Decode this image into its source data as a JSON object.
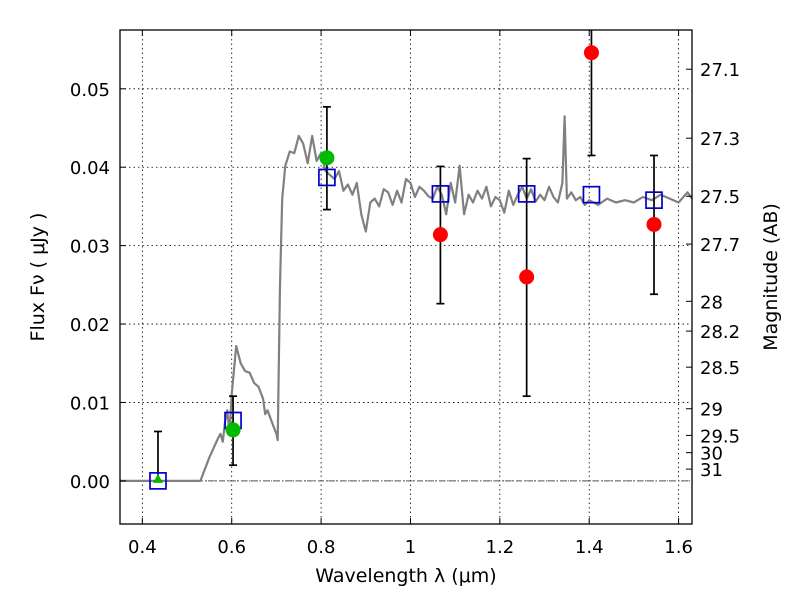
{
  "chart_data": {
    "type": "scatter",
    "xlabel": "Wavelength  λ (μm)",
    "ylabel": "Flux  Fν  ( μJy )",
    "ylabel_right": "Magnitude (AB)",
    "xlim": [
      0.35,
      1.63
    ],
    "ylim": [
      -0.0055,
      0.0575
    ],
    "x_ticks": [
      0.4,
      0.6,
      0.8,
      1.0,
      1.2,
      1.4,
      1.6
    ],
    "x_tick_labels": [
      "0.4",
      "0.6",
      "0.8",
      "1",
      "1.2",
      "1.4",
      "1.6"
    ],
    "y_ticks": [
      0.0,
      0.01,
      0.02,
      0.03,
      0.04,
      0.05
    ],
    "y_tick_labels": [
      "0.00",
      "0.01",
      "0.02",
      "0.03",
      "0.04",
      "0.05"
    ],
    "right_ticks": [
      {
        "label": "27.1",
        "flux": 0.0525
      },
      {
        "label": "27.3",
        "flux": 0.0437
      },
      {
        "label": "27.5",
        "flux": 0.0363
      },
      {
        "label": "27.7",
        "flux": 0.0302
      },
      {
        "label": "28",
        "flux": 0.0229
      },
      {
        "label": "28.2",
        "flux": 0.0191
      },
      {
        "label": "28.5",
        "flux": 0.0145
      },
      {
        "label": "29",
        "flux": 0.0092
      },
      {
        "label": "29.5",
        "flux": 0.0058
      },
      {
        "label": "30",
        "flux": 0.0036
      },
      {
        "label": "31",
        "flux": 0.0015
      }
    ],
    "grid": true,
    "colors": {
      "spectrum": "#808080",
      "model_square": "#0000cc",
      "red_point": "#ff0000",
      "green_point": "#00bb00",
      "errorbar": "#000000",
      "zero_line": "#555555"
    },
    "series": [
      {
        "kind": "line",
        "points": [
          [
            0.35,
            0
          ],
          [
            0.53,
            0
          ],
          [
            0.55,
            0.003
          ],
          [
            0.57,
            0.0055
          ],
          [
            0.575,
            0.006
          ],
          [
            0.58,
            0.005
          ],
          [
            0.585,
            0.0075
          ],
          [
            0.59,
            0.009
          ],
          [
            0.595,
            0.006
          ],
          [
            0.6,
            0.011
          ],
          [
            0.61,
            0.0172
          ],
          [
            0.62,
            0.015
          ],
          [
            0.63,
            0.014
          ],
          [
            0.64,
            0.0138
          ],
          [
            0.65,
            0.0125
          ],
          [
            0.66,
            0.012
          ],
          [
            0.67,
            0.0105
          ],
          [
            0.675,
            0.0085
          ],
          [
            0.68,
            0.009
          ],
          [
            0.69,
            0.0075
          ],
          [
            0.7,
            0.006
          ],
          [
            0.703,
            0.0052
          ],
          [
            0.708,
            0.025
          ],
          [
            0.713,
            0.036
          ],
          [
            0.72,
            0.0402
          ],
          [
            0.73,
            0.042
          ],
          [
            0.74,
            0.0418
          ],
          [
            0.75,
            0.044
          ],
          [
            0.76,
            0.043
          ],
          [
            0.77,
            0.0405
          ],
          [
            0.78,
            0.044
          ],
          [
            0.79,
            0.0408
          ],
          [
            0.8,
            0.0418
          ],
          [
            0.81,
            0.0395
          ],
          [
            0.82,
            0.039
          ],
          [
            0.83,
            0.0385
          ],
          [
            0.84,
            0.0395
          ],
          [
            0.85,
            0.037
          ],
          [
            0.86,
            0.0378
          ],
          [
            0.87,
            0.0365
          ],
          [
            0.88,
            0.038
          ],
          [
            0.89,
            0.034
          ],
          [
            0.9,
            0.0318
          ],
          [
            0.91,
            0.0355
          ],
          [
            0.92,
            0.036
          ],
          [
            0.93,
            0.035
          ],
          [
            0.94,
            0.0372
          ],
          [
            0.95,
            0.0368
          ],
          [
            0.96,
            0.0352
          ],
          [
            0.97,
            0.037
          ],
          [
            0.98,
            0.0355
          ],
          [
            0.99,
            0.0385
          ],
          [
            1.0,
            0.038
          ],
          [
            1.01,
            0.0362
          ],
          [
            1.02,
            0.0375
          ],
          [
            1.03,
            0.037
          ],
          [
            1.04,
            0.0363
          ],
          [
            1.05,
            0.036
          ],
          [
            1.06,
            0.0375
          ],
          [
            1.07,
            0.0365
          ],
          [
            1.08,
            0.034
          ],
          [
            1.09,
            0.038
          ],
          [
            1.1,
            0.0355
          ],
          [
            1.11,
            0.0402
          ],
          [
            1.12,
            0.034
          ],
          [
            1.13,
            0.0365
          ],
          [
            1.14,
            0.0355
          ],
          [
            1.15,
            0.037
          ],
          [
            1.16,
            0.036
          ],
          [
            1.17,
            0.0375
          ],
          [
            1.18,
            0.035
          ],
          [
            1.19,
            0.0362
          ],
          [
            1.2,
            0.0358
          ],
          [
            1.21,
            0.0342
          ],
          [
            1.22,
            0.037
          ],
          [
            1.23,
            0.0352
          ],
          [
            1.24,
            0.0365
          ],
          [
            1.25,
            0.0375
          ],
          [
            1.26,
            0.036
          ],
          [
            1.27,
            0.0372
          ],
          [
            1.28,
            0.0356
          ],
          [
            1.29,
            0.0365
          ],
          [
            1.3,
            0.0358
          ],
          [
            1.31,
            0.0375
          ],
          [
            1.32,
            0.0362
          ],
          [
            1.33,
            0.0355
          ],
          [
            1.34,
            0.038
          ],
          [
            1.345,
            0.0465
          ],
          [
            1.35,
            0.036
          ],
          [
            1.36,
            0.0368
          ],
          [
            1.37,
            0.0358
          ],
          [
            1.38,
            0.0362
          ],
          [
            1.39,
            0.0352
          ],
          [
            1.4,
            0.0358
          ],
          [
            1.42,
            0.0352
          ],
          [
            1.44,
            0.036
          ],
          [
            1.46,
            0.0355
          ],
          [
            1.48,
            0.0358
          ],
          [
            1.5,
            0.0355
          ],
          [
            1.52,
            0.0362
          ],
          [
            1.54,
            0.0358
          ],
          [
            1.56,
            0.0365
          ],
          [
            1.58,
            0.036
          ],
          [
            1.6,
            0.0355
          ],
          [
            1.62,
            0.0368
          ],
          [
            1.63,
            0.036
          ]
        ]
      },
      {
        "kind": "squares",
        "points": [
          [
            0.435,
            0.0
          ],
          [
            0.603,
            0.0077
          ],
          [
            0.813,
            0.0387
          ],
          [
            1.067,
            0.0366
          ],
          [
            1.26,
            0.0366
          ],
          [
            1.405,
            0.0365
          ],
          [
            1.545,
            0.0358
          ]
        ]
      },
      {
        "kind": "points",
        "points": [
          {
            "x": 0.435,
            "y": 0.0,
            "color": "green",
            "marker": "triangle"
          },
          {
            "x": 0.603,
            "y": 0.0065,
            "color": "green",
            "marker": "circle",
            "err": [
              0.002,
              0.0108
            ]
          },
          {
            "x": 0.813,
            "y": 0.0412,
            "color": "green",
            "marker": "circle",
            "err": [
              0.0346,
              0.0477
            ]
          },
          {
            "x": 1.067,
            "y": 0.0314,
            "color": "red",
            "marker": "circle",
            "err": [
              0.0226,
              0.0401
            ]
          },
          {
            "x": 1.26,
            "y": 0.026,
            "color": "red",
            "marker": "circle",
            "err": [
              0.0108,
              0.0411
            ]
          },
          {
            "x": 1.405,
            "y": 0.0546,
            "color": "red",
            "marker": "circle",
            "err": [
              0.0415,
              0.0575
            ]
          },
          {
            "x": 1.545,
            "y": 0.0327,
            "color": "red",
            "marker": "circle",
            "err": [
              0.0238,
              0.0415
            ]
          }
        ]
      },
      {
        "kind": "upper_limit",
        "points": [
          {
            "x": 0.435,
            "err": [
              0.0,
              0.0063
            ]
          }
        ]
      }
    ]
  }
}
